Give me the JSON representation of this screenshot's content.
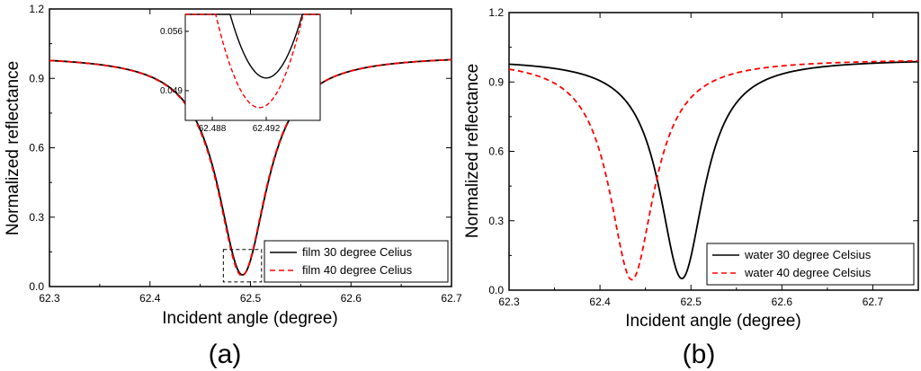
{
  "chart_data": [
    {
      "type": "line",
      "panel_label": "(a)",
      "xlabel": "Incident angle (degree)",
      "ylabel": "Normalized reflectance",
      "xlim": [
        62.3,
        62.7
      ],
      "ylim": [
        0.0,
        1.2
      ],
      "xticks": [
        "62.3",
        "62.4",
        "62.5",
        "62.6",
        "62.7"
      ],
      "yticks": [
        "0.0",
        "0.3",
        "0.6",
        "0.9",
        "1.2"
      ],
      "legend_position": "bottom-right",
      "series": [
        {
          "name": "film 30 degree Celius",
          "color": "#000000",
          "dash": "solid",
          "center": 62.492,
          "rmin": 0.0505,
          "gamma": 0.03
        },
        {
          "name": "film 40 degree Celius",
          "color": "#ff0000",
          "dash": "dashed",
          "center": 62.4915,
          "rmin": 0.047,
          "gamma": 0.03
        }
      ],
      "zoom_box": {
        "x": [
          62.473,
          62.511
        ],
        "y": [
          0.02,
          0.16
        ]
      },
      "inset": {
        "xlim": [
          62.486,
          62.496
        ],
        "ylim": [
          0.0455,
          0.058
        ],
        "xticks": [
          "62.488",
          "62.492"
        ],
        "yticks": [
          "0.049",
          "0.056"
        ]
      }
    },
    {
      "type": "line",
      "panel_label": "(b)",
      "xlabel": "Incident angle (degree)",
      "ylabel": "Normalized reflectance",
      "xlim": [
        62.3,
        62.75
      ],
      "ylim": [
        0.0,
        1.2
      ],
      "xticks": [
        "62.3",
        "62.4",
        "62.5",
        "62.6",
        "62.7"
      ],
      "yticks": [
        "0.0",
        "0.3",
        "0.6",
        "0.9",
        "1.2"
      ],
      "legend_position": "bottom-right",
      "series": [
        {
          "name": "water 30 degree Celsius",
          "color": "#000000",
          "dash": "solid",
          "center": 62.49,
          "rmin": 0.05,
          "gamma": 0.03
        },
        {
          "name": "water 40 degree Celsius",
          "color": "#ff0000",
          "dash": "dashed",
          "center": 62.435,
          "rmin": 0.045,
          "gamma": 0.03
        }
      ]
    }
  ]
}
